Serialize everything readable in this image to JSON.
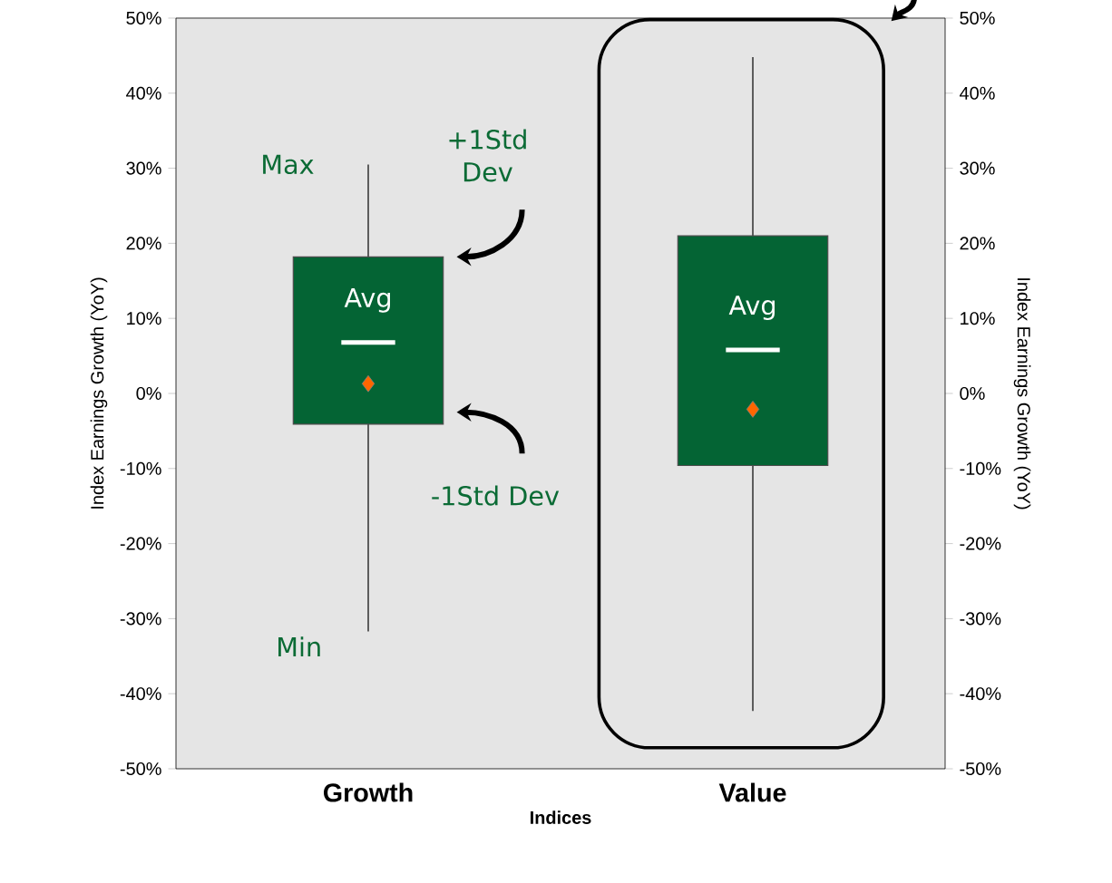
{
  "chart_data": {
    "type": "box",
    "categories": [
      "Growth",
      "Value"
    ],
    "boxes": [
      {
        "low": -31.7,
        "q1": -4.1,
        "median": 1.3,
        "mean": 6.8,
        "q3": 18.2,
        "high": 30.5
      },
      {
        "low": -42.3,
        "q1": -9.6,
        "median": -2.1,
        "mean": 5.8,
        "q3": 21.0,
        "high": 44.8
      }
    ],
    "color": "#046434",
    "xlabel": "Indices",
    "ylabel": "Index Earnings Growth (YoY)",
    "y2label": "Index Earnings Growth (YoY)",
    "ylim": [
      -50,
      50
    ],
    "yticks": [
      {
        "value": -50,
        "label": "-50%"
      },
      {
        "value": -40,
        "label": "-40%"
      },
      {
        "value": -30,
        "label": "-30%"
      },
      {
        "value": -20,
        "label": "-20%"
      },
      {
        "value": -10,
        "label": "-10%"
      },
      {
        "value": 0,
        "label": "0%"
      },
      {
        "value": 10,
        "label": "10%"
      },
      {
        "value": 20,
        "label": "20%"
      },
      {
        "value": 30,
        "label": "30%"
      },
      {
        "value": 40,
        "label": "40%"
      },
      {
        "value": 50,
        "label": "50%"
      }
    ],
    "y2lim": [
      -50,
      50
    ],
    "y2ticks": [
      {
        "value": -50,
        "label": "-50%"
      },
      {
        "value": -40,
        "label": "-40%"
      },
      {
        "value": -30,
        "label": "-30%"
      },
      {
        "value": -20,
        "label": "-20%"
      },
      {
        "value": -10,
        "label": "-10%"
      },
      {
        "value": 0,
        "label": "0%"
      },
      {
        "value": 10,
        "label": "10%"
      },
      {
        "value": 20,
        "label": "20%"
      },
      {
        "value": 30,
        "label": "30%"
      },
      {
        "value": 40,
        "label": "40%"
      },
      {
        "value": 50,
        "label": "50%"
      }
    ],
    "annotations": [
      {
        "text": "Max",
        "x": "Growth",
        "y": 30.5
      },
      "+1Std Dev",
      {
        "text": "Avg",
        "x": "Growth",
        "y": 6.8
      },
      "-1Std Dev",
      {
        "text": "Min",
        "x": "Growth",
        "y": -31.7
      },
      {
        "text": "Avg",
        "x": "Value",
        "y": 5.8
      }
    ]
  }
}
